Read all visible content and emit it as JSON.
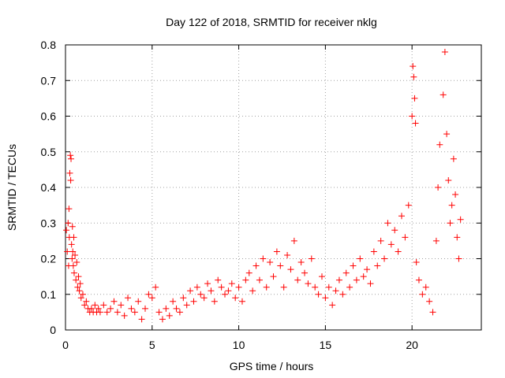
{
  "chart_data": {
    "type": "scatter",
    "title": "Day 122 of 2018, SRMTID for receiver nklg",
    "xlabel": "GPS time / hours",
    "ylabel": "SRMTID / TECUs",
    "xlim": [
      0,
      24
    ],
    "ylim": [
      0,
      0.8
    ],
    "xticks": [
      0,
      5,
      10,
      15,
      20
    ],
    "yticks": [
      0,
      0.1,
      0.2,
      0.3,
      0.4,
      0.5,
      0.6,
      0.7,
      0.8
    ],
    "xtick_labels": [
      "0",
      "5",
      "10",
      "15",
      "20"
    ],
    "ytick_labels": [
      "0",
      "0.1",
      "0.2",
      "0.3",
      "0.4",
      "0.5",
      "0.6",
      "0.7",
      "0.8"
    ],
    "grid": true,
    "marker": "+",
    "color": "#ff0000",
    "series": [
      {
        "name": "SRMTID",
        "points": [
          [
            0.05,
            0.28
          ],
          [
            0.1,
            0.22
          ],
          [
            0.15,
            0.3
          ],
          [
            0.18,
            0.18
          ],
          [
            0.2,
            0.34
          ],
          [
            0.22,
            0.26
          ],
          [
            0.25,
            0.44
          ],
          [
            0.28,
            0.49
          ],
          [
            0.3,
            0.42
          ],
          [
            0.32,
            0.48
          ],
          [
            0.35,
            0.24
          ],
          [
            0.38,
            0.2
          ],
          [
            0.4,
            0.29
          ],
          [
            0.42,
            0.22
          ],
          [
            0.45,
            0.18
          ],
          [
            0.48,
            0.26
          ],
          [
            0.5,
            0.16
          ],
          [
            0.55,
            0.21
          ],
          [
            0.6,
            0.14
          ],
          [
            0.65,
            0.19
          ],
          [
            0.7,
            0.12
          ],
          [
            0.75,
            0.15
          ],
          [
            0.8,
            0.11
          ],
          [
            0.85,
            0.13
          ],
          [
            0.9,
            0.09
          ],
          [
            1.0,
            0.1
          ],
          [
            1.1,
            0.07
          ],
          [
            1.2,
            0.08
          ],
          [
            1.3,
            0.06
          ],
          [
            1.4,
            0.05
          ],
          [
            1.5,
            0.06
          ],
          [
            1.6,
            0.05
          ],
          [
            1.7,
            0.07
          ],
          [
            1.8,
            0.05
          ],
          [
            1.9,
            0.06
          ],
          [
            2.0,
            0.05
          ],
          [
            2.2,
            0.07
          ],
          [
            2.4,
            0.05
          ],
          [
            2.6,
            0.06
          ],
          [
            2.8,
            0.08
          ],
          [
            3.0,
            0.05
          ],
          [
            3.2,
            0.07
          ],
          [
            3.4,
            0.04
          ],
          [
            3.6,
            0.09
          ],
          [
            3.8,
            0.06
          ],
          [
            4.0,
            0.05
          ],
          [
            4.2,
            0.08
          ],
          [
            4.4,
            0.03
          ],
          [
            4.6,
            0.06
          ],
          [
            4.8,
            0.1
          ],
          [
            5.0,
            0.09
          ],
          [
            5.2,
            0.12
          ],
          [
            5.4,
            0.05
          ],
          [
            5.6,
            0.03
          ],
          [
            5.8,
            0.06
          ],
          [
            6.0,
            0.04
          ],
          [
            6.2,
            0.08
          ],
          [
            6.4,
            0.06
          ],
          [
            6.6,
            0.05
          ],
          [
            6.8,
            0.09
          ],
          [
            7.0,
            0.07
          ],
          [
            7.2,
            0.11
          ],
          [
            7.4,
            0.08
          ],
          [
            7.6,
            0.12
          ],
          [
            7.8,
            0.1
          ],
          [
            8.0,
            0.09
          ],
          [
            8.2,
            0.13
          ],
          [
            8.4,
            0.11
          ],
          [
            8.6,
            0.08
          ],
          [
            8.8,
            0.14
          ],
          [
            9.0,
            0.12
          ],
          [
            9.2,
            0.1
          ],
          [
            9.4,
            0.11
          ],
          [
            9.6,
            0.13
          ],
          [
            9.8,
            0.09
          ],
          [
            10.0,
            0.12
          ],
          [
            10.2,
            0.08
          ],
          [
            10.4,
            0.14
          ],
          [
            10.6,
            0.16
          ],
          [
            10.8,
            0.11
          ],
          [
            11.0,
            0.18
          ],
          [
            11.2,
            0.14
          ],
          [
            11.4,
            0.2
          ],
          [
            11.6,
            0.12
          ],
          [
            11.8,
            0.19
          ],
          [
            12.0,
            0.15
          ],
          [
            12.2,
            0.22
          ],
          [
            12.4,
            0.18
          ],
          [
            12.6,
            0.12
          ],
          [
            12.8,
            0.21
          ],
          [
            13.0,
            0.17
          ],
          [
            13.2,
            0.25
          ],
          [
            13.4,
            0.14
          ],
          [
            13.6,
            0.19
          ],
          [
            13.8,
            0.16
          ],
          [
            14.0,
            0.13
          ],
          [
            14.2,
            0.2
          ],
          [
            14.4,
            0.12
          ],
          [
            14.6,
            0.1
          ],
          [
            14.8,
            0.15
          ],
          [
            15.0,
            0.09
          ],
          [
            15.2,
            0.12
          ],
          [
            15.4,
            0.07
          ],
          [
            15.6,
            0.11
          ],
          [
            15.8,
            0.14
          ],
          [
            16.0,
            0.1
          ],
          [
            16.2,
            0.16
          ],
          [
            16.4,
            0.12
          ],
          [
            16.6,
            0.18
          ],
          [
            16.8,
            0.14
          ],
          [
            17.0,
            0.2
          ],
          [
            17.2,
            0.15
          ],
          [
            17.4,
            0.17
          ],
          [
            17.6,
            0.13
          ],
          [
            17.8,
            0.22
          ],
          [
            18.0,
            0.18
          ],
          [
            18.2,
            0.25
          ],
          [
            18.4,
            0.2
          ],
          [
            18.6,
            0.3
          ],
          [
            18.8,
            0.24
          ],
          [
            19.0,
            0.28
          ],
          [
            19.2,
            0.22
          ],
          [
            19.4,
            0.32
          ],
          [
            19.6,
            0.26
          ],
          [
            19.8,
            0.35
          ],
          [
            20.0,
            0.6
          ],
          [
            20.05,
            0.74
          ],
          [
            20.1,
            0.71
          ],
          [
            20.15,
            0.65
          ],
          [
            20.2,
            0.58
          ],
          [
            20.25,
            0.19
          ],
          [
            20.4,
            0.14
          ],
          [
            20.6,
            0.1
          ],
          [
            20.8,
            0.12
          ],
          [
            21.0,
            0.08
          ],
          [
            21.2,
            0.05
          ],
          [
            21.4,
            0.25
          ],
          [
            21.5,
            0.4
          ],
          [
            21.6,
            0.52
          ],
          [
            21.8,
            0.66
          ],
          [
            21.9,
            0.78
          ],
          [
            22.0,
            0.55
          ],
          [
            22.1,
            0.42
          ],
          [
            22.2,
            0.3
          ],
          [
            22.3,
            0.35
          ],
          [
            22.4,
            0.48
          ],
          [
            22.5,
            0.38
          ],
          [
            22.6,
            0.26
          ],
          [
            22.7,
            0.2
          ],
          [
            22.8,
            0.31
          ]
        ]
      }
    ]
  }
}
